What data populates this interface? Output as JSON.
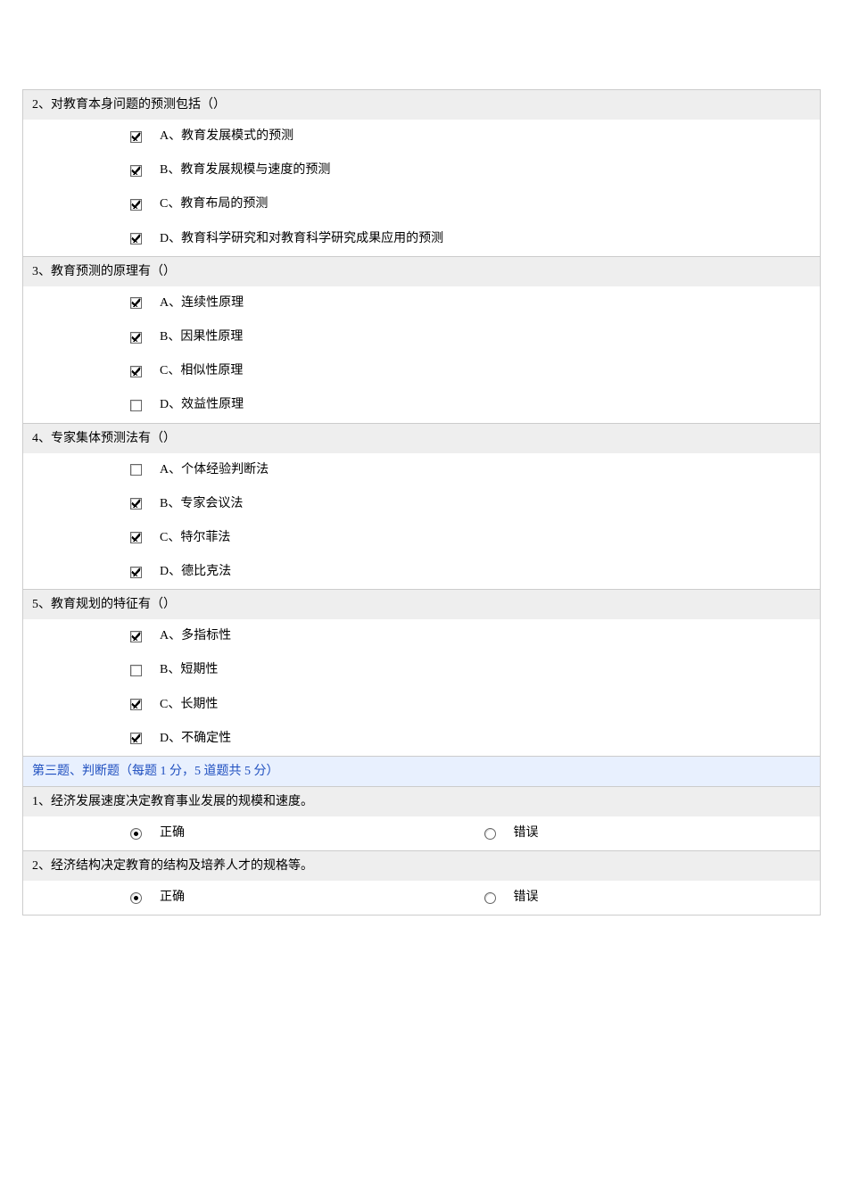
{
  "questions": [
    {
      "title": "2、对教育本身问题的预测包括（）",
      "type": "checkbox",
      "options": [
        {
          "label": "A、教育发展模式的预测",
          "checked": true
        },
        {
          "label": "B、教育发展规模与速度的预测",
          "checked": true
        },
        {
          "label": "C、教育布局的预测",
          "checked": true
        },
        {
          "label": "D、教育科学研究和对教育科学研究成果应用的预测",
          "checked": true
        }
      ]
    },
    {
      "title": "3、教育预测的原理有（）",
      "type": "checkbox",
      "options": [
        {
          "label": "A、连续性原理",
          "checked": true
        },
        {
          "label": "B、因果性原理",
          "checked": true
        },
        {
          "label": "C、相似性原理",
          "checked": true
        },
        {
          "label": "D、效益性原理",
          "checked": false
        }
      ]
    },
    {
      "title": "4、专家集体预测法有（）",
      "type": "checkbox",
      "options": [
        {
          "label": "A、个体经验判断法",
          "checked": false
        },
        {
          "label": "B、专家会议法",
          "checked": true
        },
        {
          "label": "C、特尔菲法",
          "checked": true
        },
        {
          "label": "D、德比克法",
          "checked": true
        }
      ]
    },
    {
      "title": "5、教育规划的特征有（）",
      "type": "checkbox",
      "options": [
        {
          "label": "A、多指标性",
          "checked": true
        },
        {
          "label": "B、短期性",
          "checked": false
        },
        {
          "label": "C、长期性",
          "checked": true
        },
        {
          "label": "D、不确定性",
          "checked": true
        }
      ]
    }
  ],
  "section3": {
    "title": "第三题、判断题（每题 1 分，5 道题共 5 分）",
    "tf": [
      {
        "title": "1、经济发展速度决定教育事业发展的规模和速度。",
        "true_label": "正确",
        "false_label": "错误",
        "selected": "true"
      },
      {
        "title": "2、经济结构决定教育的结构及培养人才的规格等。",
        "true_label": "正确",
        "false_label": "错误",
        "selected": "true"
      }
    ]
  }
}
